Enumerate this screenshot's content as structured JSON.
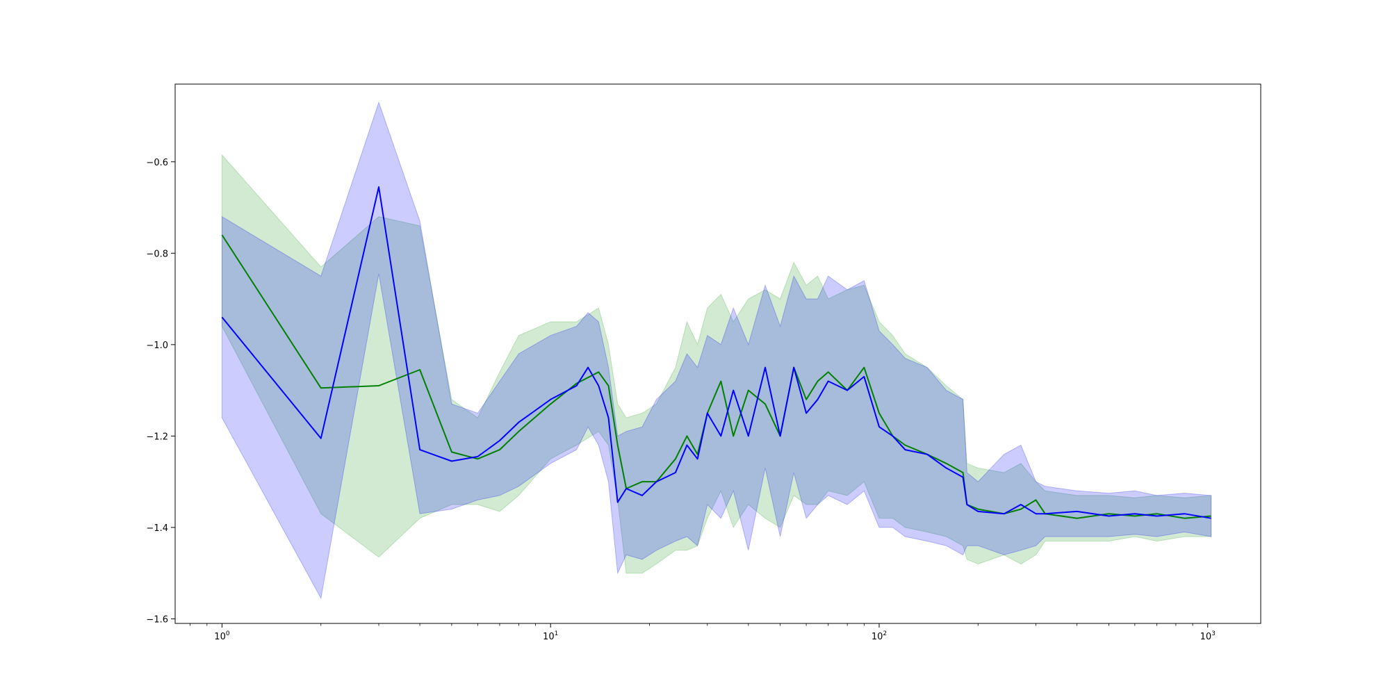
{
  "chart_data": {
    "type": "line",
    "title": "",
    "xlabel": "",
    "ylabel": "",
    "x_scale": "log",
    "xlim": [
      0.72,
      1450
    ],
    "ylim": [
      -1.61,
      -0.43
    ],
    "grid": false,
    "legend": "none",
    "x_tick_labels": [
      {
        "value": 1,
        "base": "10",
        "exp": "0"
      },
      {
        "value": 10,
        "base": "10",
        "exp": "1"
      },
      {
        "value": 100,
        "base": "10",
        "exp": "2"
      },
      {
        "value": 1000,
        "base": "10",
        "exp": "3"
      }
    ],
    "y_ticks": [
      -0.6,
      -0.8,
      -1.0,
      -1.2,
      -1.4,
      -1.6
    ],
    "y_tick_labels": [
      "−0.6",
      "−0.8",
      "−1.0",
      "−1.2",
      "−1.4",
      "−1.6"
    ],
    "series": [
      {
        "color": "#008000",
        "band_color": "#2ca02c",
        "x": [
          1,
          2,
          3,
          4,
          5,
          6,
          7,
          8,
          10,
          12,
          14,
          15,
          16,
          17,
          19,
          21,
          24,
          26,
          28,
          30,
          33,
          36,
          40,
          45,
          50,
          55,
          60,
          65,
          70,
          80,
          90,
          100,
          110,
          120,
          140,
          160,
          180,
          185,
          200,
          240,
          270,
          300,
          320,
          400,
          500,
          600,
          700,
          850,
          1024
        ],
        "y": [
          -0.76,
          -1.095,
          -1.09,
          -1.055,
          -1.235,
          -1.25,
          -1.23,
          -1.19,
          -1.13,
          -1.085,
          -1.06,
          -1.09,
          -1.22,
          -1.315,
          -1.3,
          -1.3,
          -1.25,
          -1.2,
          -1.24,
          -1.15,
          -1.08,
          -1.2,
          -1.1,
          -1.13,
          -1.2,
          -1.05,
          -1.12,
          -1.08,
          -1.06,
          -1.1,
          -1.05,
          -1.15,
          -1.2,
          -1.22,
          -1.24,
          -1.26,
          -1.28,
          -1.35,
          -1.36,
          -1.37,
          -1.36,
          -1.34,
          -1.37,
          -1.38,
          -1.37,
          -1.375,
          -1.37,
          -1.38,
          -1.375
        ],
        "upper": [
          -0.585,
          -0.83,
          -0.72,
          -0.74,
          -1.12,
          -1.16,
          -1.06,
          -0.98,
          -0.95,
          -0.95,
          -0.92,
          -1.0,
          -1.13,
          -1.16,
          -1.15,
          -1.13,
          -1.05,
          -0.95,
          -1.0,
          -0.92,
          -0.89,
          -0.95,
          -0.9,
          -0.88,
          -0.9,
          -0.82,
          -0.87,
          -0.85,
          -0.9,
          -0.88,
          -0.87,
          -0.95,
          -0.98,
          -1.02,
          -1.05,
          -1.09,
          -1.12,
          -1.26,
          -1.27,
          -1.28,
          -1.26,
          -1.3,
          -1.32,
          -1.33,
          -1.33,
          -1.335,
          -1.33,
          -1.335,
          -1.33
        ],
        "lower": [
          -0.96,
          -1.37,
          -1.465,
          -1.38,
          -1.35,
          -1.35,
          -1.365,
          -1.33,
          -1.25,
          -1.22,
          -1.19,
          -1.22,
          -1.34,
          -1.5,
          -1.5,
          -1.48,
          -1.45,
          -1.45,
          -1.44,
          -1.38,
          -1.32,
          -1.4,
          -1.35,
          -1.38,
          -1.4,
          -1.33,
          -1.35,
          -1.35,
          -1.32,
          -1.33,
          -1.3,
          -1.38,
          -1.38,
          -1.4,
          -1.41,
          -1.42,
          -1.44,
          -1.47,
          -1.48,
          -1.46,
          -1.48,
          -1.46,
          -1.43,
          -1.43,
          -1.43,
          -1.42,
          -1.43,
          -1.42,
          -1.42
        ]
      },
      {
        "color": "#0000ff",
        "band_color": "#0000ff",
        "x": [
          1,
          2,
          3,
          4,
          5,
          6,
          7,
          8,
          10,
          12,
          13,
          14,
          15,
          16,
          17,
          19,
          21,
          24,
          26,
          28,
          30,
          33,
          36,
          40,
          45,
          50,
          55,
          60,
          65,
          70,
          80,
          90,
          100,
          110,
          120,
          140,
          160,
          180,
          185,
          200,
          240,
          270,
          300,
          320,
          400,
          500,
          600,
          700,
          850,
          1024
        ],
        "y": [
          -0.94,
          -1.205,
          -0.655,
          -1.23,
          -1.255,
          -1.245,
          -1.21,
          -1.17,
          -1.12,
          -1.09,
          -1.05,
          -1.09,
          -1.16,
          -1.345,
          -1.315,
          -1.33,
          -1.3,
          -1.28,
          -1.22,
          -1.25,
          -1.15,
          -1.2,
          -1.1,
          -1.2,
          -1.05,
          -1.2,
          -1.05,
          -1.15,
          -1.12,
          -1.08,
          -1.1,
          -1.07,
          -1.18,
          -1.2,
          -1.23,
          -1.24,
          -1.27,
          -1.29,
          -1.35,
          -1.365,
          -1.37,
          -1.35,
          -1.37,
          -1.37,
          -1.365,
          -1.375,
          -1.37,
          -1.375,
          -1.37,
          -1.38
        ],
        "upper": [
          -0.72,
          -0.85,
          -0.47,
          -0.73,
          -1.13,
          -1.15,
          -1.08,
          -1.02,
          -0.98,
          -0.96,
          -0.93,
          -0.95,
          -1.05,
          -1.2,
          -1.19,
          -1.18,
          -1.12,
          -1.08,
          -1.02,
          -1.05,
          -0.98,
          -1.0,
          -0.92,
          -1.0,
          -0.87,
          -0.96,
          -0.85,
          -0.9,
          -0.9,
          -0.85,
          -0.88,
          -0.86,
          -0.97,
          -1.0,
          -1.03,
          -1.05,
          -1.1,
          -1.12,
          -1.28,
          -1.3,
          -1.24,
          -1.22,
          -1.3,
          -1.31,
          -1.32,
          -1.325,
          -1.32,
          -1.33,
          -1.325,
          -1.33
        ],
        "lower": [
          -1.16,
          -1.555,
          -0.845,
          -1.37,
          -1.36,
          -1.34,
          -1.33,
          -1.31,
          -1.26,
          -1.23,
          -1.18,
          -1.22,
          -1.3,
          -1.5,
          -1.46,
          -1.47,
          -1.45,
          -1.43,
          -1.42,
          -1.44,
          -1.35,
          -1.38,
          -1.32,
          -1.45,
          -1.27,
          -1.42,
          -1.28,
          -1.38,
          -1.35,
          -1.33,
          -1.35,
          -1.32,
          -1.4,
          -1.4,
          -1.42,
          -1.43,
          -1.44,
          -1.46,
          -1.44,
          -1.44,
          -1.46,
          -1.45,
          -1.44,
          -1.42,
          -1.42,
          -1.42,
          -1.415,
          -1.42,
          -1.41,
          -1.42
        ]
      }
    ]
  }
}
